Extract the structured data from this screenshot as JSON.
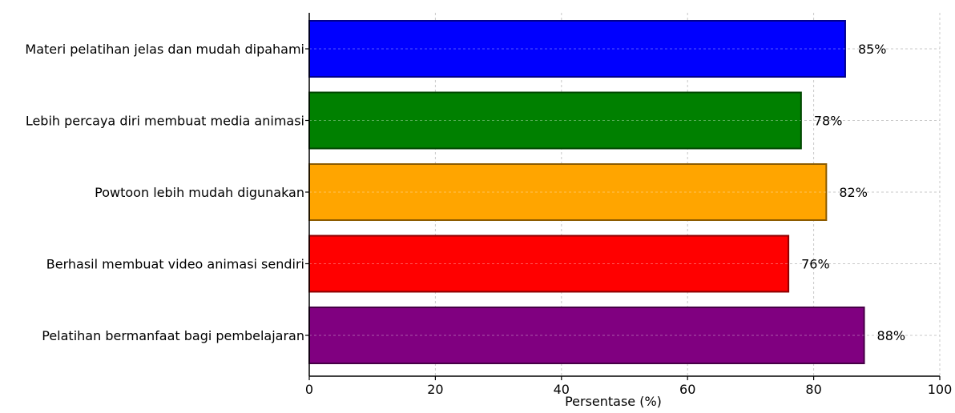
{
  "chart_data": {
    "type": "bar",
    "orientation": "horizontal",
    "categories": [
      "Materi pelatihan jelas dan mudah dipahami",
      "Lebih percaya diri membuat media animasi",
      "Powtoon lebih mudah digunakan",
      "Berhasil membuat video animasi sendiri",
      "Pelatihan bermanfaat bagi pembelajaran"
    ],
    "values": [
      85,
      78,
      82,
      76,
      88
    ],
    "value_labels": [
      "85%",
      "78%",
      "82%",
      "76%",
      "88%"
    ],
    "colors": [
      "#0000ff",
      "#008000",
      "#ffa500",
      "#ff0000",
      "#800080"
    ],
    "xlabel": "Persentase (%)",
    "xlim": [
      0,
      100
    ],
    "x_ticks": [
      0,
      20,
      40,
      60,
      80,
      100
    ],
    "x_tick_labels": [
      "0",
      "20",
      "40",
      "60",
      "80",
      "100"
    ],
    "grid": true
  }
}
